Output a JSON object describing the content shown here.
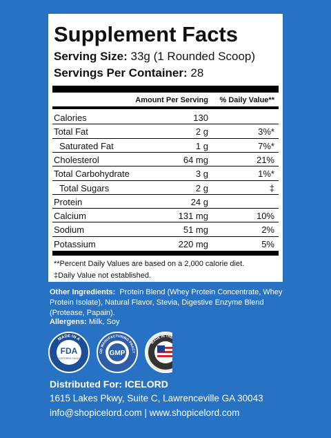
{
  "title": "Supplement Facts",
  "serving_size": {
    "label": "Serving Size:",
    "value": "33g (1 Rounded Scoop)"
  },
  "servings_per_container": {
    "label": "Servings Per Container:",
    "value": "28"
  },
  "table": {
    "headers": [
      "Amount Per Serving",
      "% Daily Value**"
    ],
    "rows": [
      {
        "name": "Calories",
        "amount": "130"
      },
      {
        "name": "Total Fat",
        "amount": "2 g",
        "dv": "3%*"
      },
      {
        "name": "Saturated Fat",
        "amount": "1 g",
        "dv": "7%*",
        "indent": true
      },
      {
        "name": "Cholesterol",
        "amount": "64 mg",
        "dv": "21%"
      },
      {
        "name": "Total Carbohydrate",
        "amount": "3 g",
        "dv": "1%*"
      },
      {
        "name": "Total Sugars",
        "amount": "2 g",
        "dv": "‡",
        "indent": true
      },
      {
        "name": "Protein",
        "amount": "24 g"
      },
      {
        "name": "Calcium",
        "amount": "131 mg",
        "dv": "10%"
      },
      {
        "name": "Sodium",
        "amount": "51 mg",
        "dv": "2%"
      },
      {
        "name": "Potassium",
        "amount": "220 mg",
        "dv": "5%"
      }
    ]
  },
  "footnotes": [
    "**Percent Daily Values are based on a 2,000 calorie diet.",
    "‡Daily Value not established."
  ],
  "other_ingredients": {
    "label": "Other Ingredients:",
    "text": "Protein Blend (Whey Protein Concentrate, Whey Protein Isolate), Natural Flavor, Stevia, Digestive Enzyme Blend (Protease, Papain)."
  },
  "allergens": {
    "label": "Allergens:",
    "text": "Milk, Soy"
  },
  "badges": {
    "fda": {
      "ring": "MADE IN A",
      "main": "FDA",
      "sub": "REGISTERED FACILITY"
    },
    "gmp": {
      "ring": "GOOD MANUFACTURING PRACTICE",
      "main": "GMP"
    },
    "usa": {
      "ring": "MADE IN THE USA"
    }
  },
  "distributor": {
    "label": "Distributed For: ICELORD",
    "address": "1615 Lakes Pkwy, Suite C, Lawrenceville GA 30043",
    "contact": "info@shopicelord.com | www.shopicelord.com"
  }
}
